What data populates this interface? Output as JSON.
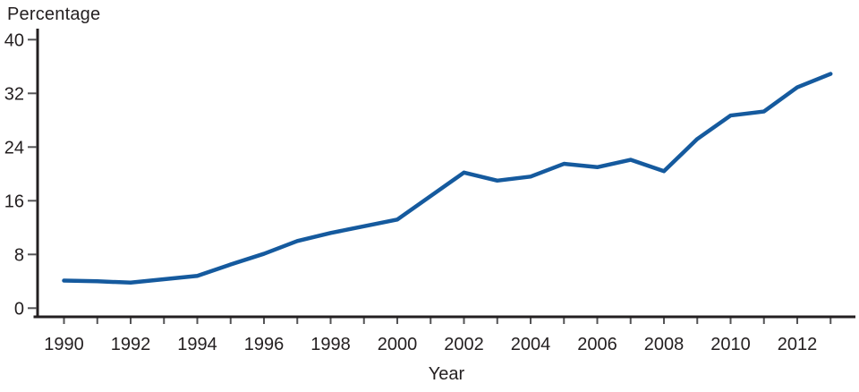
{
  "chart_data": {
    "type": "line",
    "title": "",
    "ylabel": "Percentage",
    "xlabel": "Year",
    "x": [
      1990,
      1991,
      1992,
      1993,
      1994,
      1995,
      1996,
      1997,
      1998,
      1999,
      2000,
      2001,
      2002,
      2003,
      2004,
      2005,
      2006,
      2007,
      2008,
      2009,
      2010,
      2011,
      2012,
      2013
    ],
    "series": [
      {
        "name": "Percentage",
        "values": [
          4.1,
          4.0,
          3.8,
          4.3,
          4.8,
          6.5,
          8.1,
          10.0,
          11.2,
          12.2,
          13.2,
          16.7,
          20.2,
          19.0,
          19.6,
          21.5,
          21.0,
          22.1,
          20.4,
          25.2,
          28.7,
          29.3,
          32.9,
          34.9
        ]
      }
    ],
    "ylim": [
      0,
      40
    ],
    "yticks": [
      0,
      8,
      16,
      24,
      32,
      40
    ],
    "xtick_labels": [
      1990,
      1992,
      1994,
      1996,
      1998,
      2000,
      2002,
      2004,
      2006,
      2008,
      2010,
      2012
    ],
    "grid": false,
    "legend_position": "none",
    "line_color": "#155a9e",
    "axis_color": "#231f20",
    "tick_color": "#545456",
    "text_color": "#231f20",
    "background": "#ffffff"
  }
}
